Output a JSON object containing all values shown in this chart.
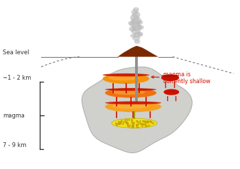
{
  "fig_bg": "#ffffff",
  "body_fill": "#d0d0cc",
  "body_edge": "#aaaaaa",
  "volcano_color": "#7a2800",
  "smoke_color": "#b8b8b8",
  "conduit_color": "#909090",
  "orange1": "#f5920a",
  "orange2": "#f07010",
  "orange3": "#f5a020",
  "red_color": "#cc1000",
  "deep_red": "#bb0800",
  "yellow_color": "#f0e020",
  "yellow_dot": "#c8a000",
  "annotation_color": "#cc1000",
  "text_color": "#333333",
  "line_color": "#777777",
  "label_fontsize": 6.0,
  "annotation_fontsize": 5.8,
  "sea_level_label": "Sea level",
  "depth1_label": "~1 - 2 km",
  "depth2_label": "7 - 9 km",
  "magma_label": "magma",
  "annotation_text": "magma is\ncurrently shallow"
}
